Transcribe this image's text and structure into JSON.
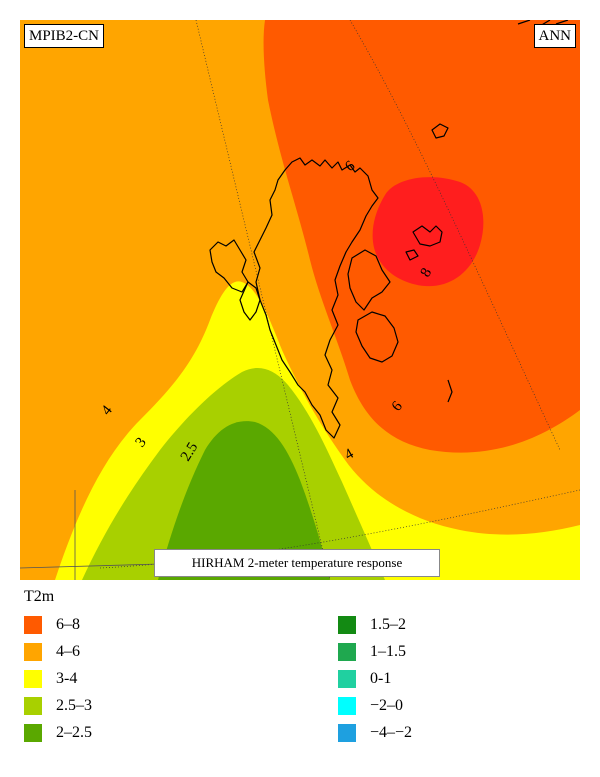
{
  "map": {
    "label_left": "MPIB2-CN",
    "label_right": "ANN",
    "caption": "HIRHAM 2-meter temperature response",
    "contour_labels": [
      "4",
      "3",
      "2.5",
      "6",
      "4",
      "8",
      "6"
    ],
    "colors": {
      "6-8": "#ff5a00",
      "8-plus": "#ff1e1e",
      "4-6": "#ffa500",
      "3-4": "#ffff00",
      "2.5-3": "#a8d000",
      "2-2.5": "#5aa800"
    }
  },
  "legend": {
    "title": "T2m",
    "items": [
      {
        "label": "6–8",
        "color": "#ff5a00"
      },
      {
        "label": "4–6",
        "color": "#ffa500"
      },
      {
        "label": "3-4",
        "color": "#ffff00"
      },
      {
        "label": "2.5–3",
        "color": "#a8d000"
      },
      {
        "label": "2–2.5",
        "color": "#5aa800"
      },
      {
        "label": "1.5–2",
        "color": "#138a13"
      },
      {
        "label": "1–1.5",
        "color": "#1fa84f"
      },
      {
        "label": "0-1",
        "color": "#20d0a0"
      },
      {
        "label": "−2–0",
        "color": "#00ffff"
      },
      {
        "label": "−4–−2",
        "color": "#1ea0e0"
      }
    ]
  }
}
